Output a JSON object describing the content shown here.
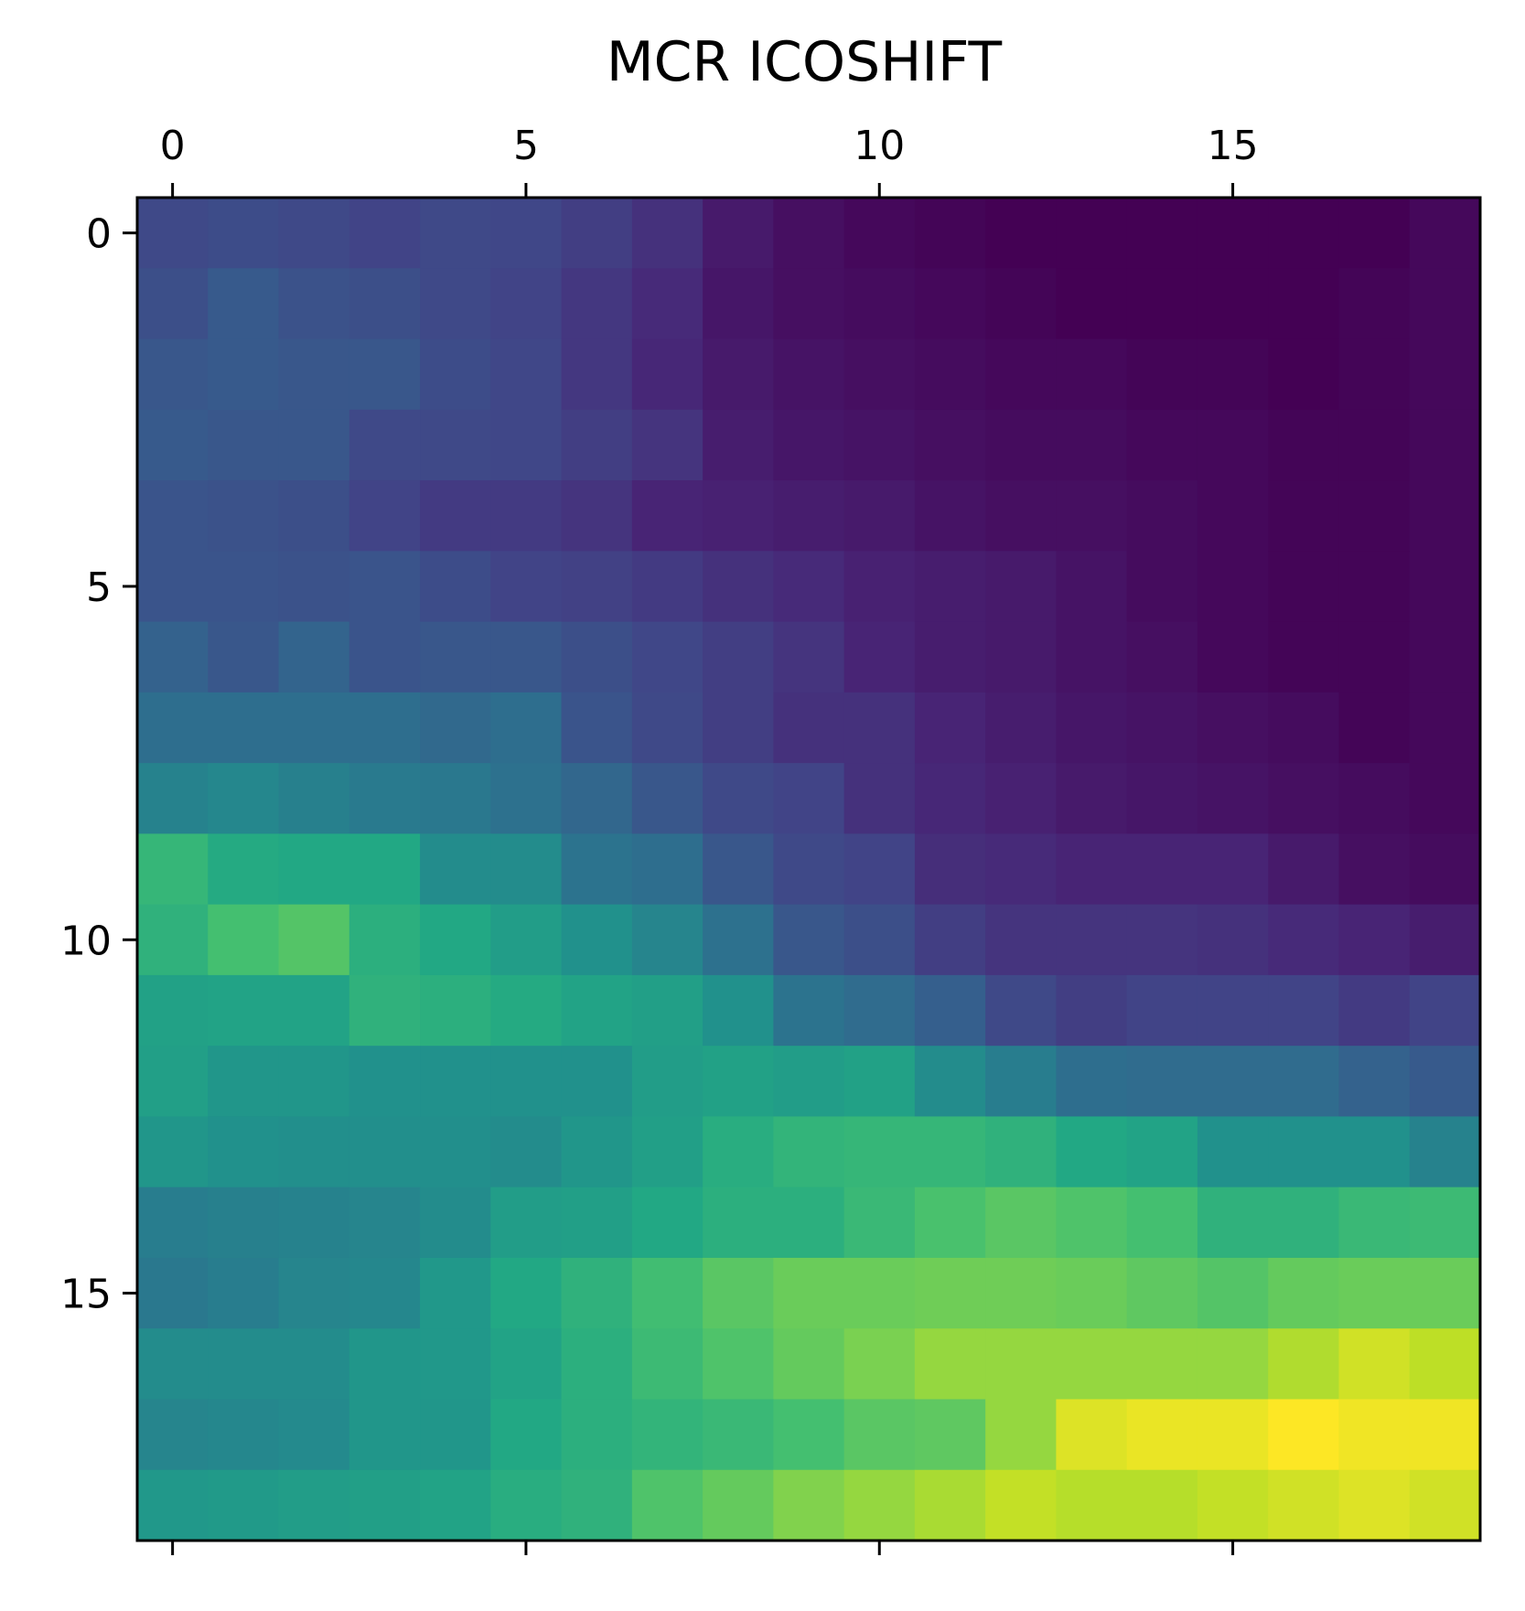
{
  "chart_data": {
    "type": "heatmap",
    "title": "MCR ICOSHIFT",
    "xlabel": "",
    "ylabel": "",
    "colormap": "viridis",
    "x_tick_position": "top",
    "x_ticks": [
      0,
      5,
      10,
      15
    ],
    "y_ticks": [
      0,
      5,
      10,
      15
    ],
    "x_range": [
      0,
      18
    ],
    "y_range": [
      0,
      18
    ],
    "grid": false,
    "value_range": [
      0,
      1
    ],
    "values": [
      [
        0.22,
        0.23,
        0.22,
        0.2,
        0.22,
        0.21,
        0.18,
        0.14,
        0.07,
        0.04,
        0.02,
        0.01,
        0.0,
        0.0,
        0.0,
        0.0,
        0.0,
        0.0,
        0.02
      ],
      [
        0.24,
        0.28,
        0.25,
        0.24,
        0.22,
        0.2,
        0.16,
        0.12,
        0.06,
        0.04,
        0.03,
        0.02,
        0.01,
        0.0,
        0.0,
        0.0,
        0.0,
        0.01,
        0.02
      ],
      [
        0.27,
        0.28,
        0.27,
        0.27,
        0.23,
        0.21,
        0.16,
        0.11,
        0.07,
        0.05,
        0.04,
        0.03,
        0.02,
        0.02,
        0.01,
        0.01,
        0.0,
        0.01,
        0.02
      ],
      [
        0.28,
        0.27,
        0.27,
        0.22,
        0.22,
        0.21,
        0.18,
        0.15,
        0.08,
        0.06,
        0.05,
        0.04,
        0.03,
        0.03,
        0.02,
        0.02,
        0.01,
        0.01,
        0.02
      ],
      [
        0.26,
        0.25,
        0.24,
        0.2,
        0.17,
        0.17,
        0.15,
        0.1,
        0.09,
        0.08,
        0.07,
        0.05,
        0.04,
        0.04,
        0.03,
        0.02,
        0.01,
        0.01,
        0.02
      ],
      [
        0.26,
        0.26,
        0.25,
        0.26,
        0.23,
        0.2,
        0.19,
        0.17,
        0.14,
        0.12,
        0.09,
        0.08,
        0.07,
        0.05,
        0.03,
        0.02,
        0.01,
        0.01,
        0.02
      ],
      [
        0.31,
        0.27,
        0.32,
        0.26,
        0.27,
        0.27,
        0.24,
        0.21,
        0.18,
        0.15,
        0.1,
        0.08,
        0.07,
        0.05,
        0.04,
        0.02,
        0.01,
        0.01,
        0.02
      ],
      [
        0.36,
        0.36,
        0.36,
        0.36,
        0.34,
        0.36,
        0.26,
        0.22,
        0.18,
        0.14,
        0.14,
        0.1,
        0.08,
        0.06,
        0.05,
        0.04,
        0.03,
        0.01,
        0.02
      ],
      [
        0.44,
        0.46,
        0.43,
        0.41,
        0.4,
        0.37,
        0.33,
        0.27,
        0.22,
        0.2,
        0.14,
        0.11,
        0.09,
        0.07,
        0.06,
        0.05,
        0.04,
        0.03,
        0.02
      ],
      [
        0.66,
        0.61,
        0.6,
        0.6,
        0.48,
        0.48,
        0.38,
        0.36,
        0.27,
        0.22,
        0.2,
        0.13,
        0.12,
        0.1,
        0.1,
        0.1,
        0.07,
        0.04,
        0.03
      ],
      [
        0.64,
        0.7,
        0.73,
        0.63,
        0.6,
        0.55,
        0.5,
        0.45,
        0.37,
        0.27,
        0.24,
        0.18,
        0.15,
        0.15,
        0.15,
        0.14,
        0.12,
        0.1,
        0.08
      ],
      [
        0.57,
        0.58,
        0.58,
        0.64,
        0.63,
        0.61,
        0.58,
        0.56,
        0.5,
        0.38,
        0.35,
        0.3,
        0.22,
        0.18,
        0.2,
        0.2,
        0.2,
        0.17,
        0.2
      ],
      [
        0.56,
        0.52,
        0.52,
        0.5,
        0.5,
        0.5,
        0.5,
        0.55,
        0.57,
        0.55,
        0.57,
        0.48,
        0.42,
        0.36,
        0.35,
        0.35,
        0.35,
        0.31,
        0.28
      ],
      [
        0.52,
        0.5,
        0.49,
        0.49,
        0.49,
        0.48,
        0.52,
        0.56,
        0.62,
        0.65,
        0.66,
        0.66,
        0.64,
        0.6,
        0.58,
        0.5,
        0.5,
        0.5,
        0.44
      ],
      [
        0.42,
        0.43,
        0.44,
        0.45,
        0.48,
        0.55,
        0.56,
        0.6,
        0.63,
        0.63,
        0.67,
        0.71,
        0.74,
        0.72,
        0.7,
        0.64,
        0.64,
        0.67,
        0.68
      ],
      [
        0.4,
        0.42,
        0.45,
        0.46,
        0.53,
        0.6,
        0.64,
        0.69,
        0.74,
        0.77,
        0.77,
        0.78,
        0.78,
        0.77,
        0.75,
        0.73,
        0.76,
        0.77,
        0.77
      ],
      [
        0.48,
        0.48,
        0.48,
        0.52,
        0.53,
        0.58,
        0.63,
        0.68,
        0.72,
        0.76,
        0.8,
        0.84,
        0.84,
        0.84,
        0.84,
        0.84,
        0.88,
        0.93,
        0.9
      ],
      [
        0.45,
        0.46,
        0.47,
        0.52,
        0.52,
        0.6,
        0.63,
        0.65,
        0.67,
        0.7,
        0.74,
        0.75,
        0.84,
        0.95,
        0.97,
        0.97,
        1.0,
        0.98,
        0.98
      ],
      [
        0.53,
        0.54,
        0.55,
        0.56,
        0.58,
        0.62,
        0.64,
        0.72,
        0.76,
        0.81,
        0.84,
        0.87,
        0.91,
        0.89,
        0.89,
        0.91,
        0.93,
        0.95,
        0.93
      ]
    ]
  }
}
